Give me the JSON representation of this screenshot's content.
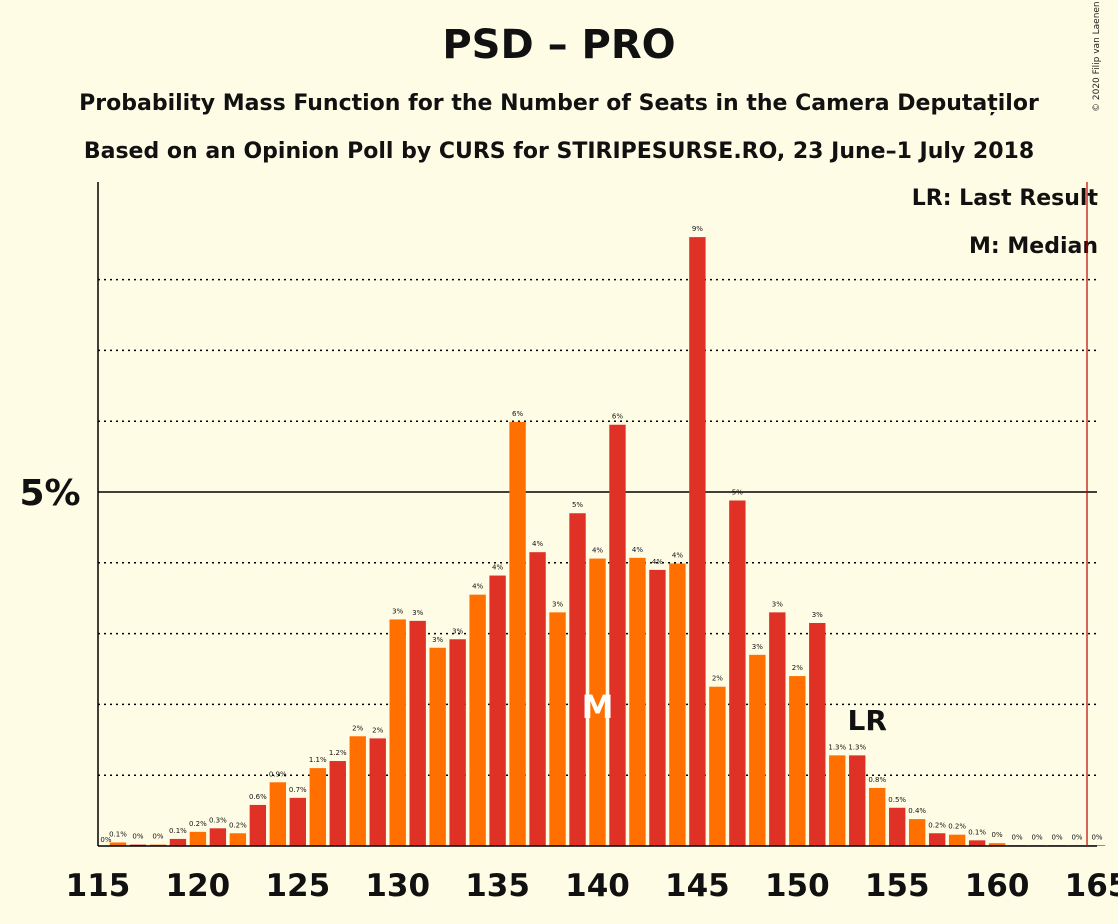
{
  "header": {
    "title": "PSD – PRO",
    "subtitle1": "Probability Mass Function for the Number of Seats in the Camera Deputaților",
    "subtitle2": "Based on an Opinion Poll by CURS for STIRIPESURSE.RO, 23 June–1 July 2018",
    "credit": "© 2020 Filip van Laenen"
  },
  "legend": {
    "lr": "LR: Last Result",
    "m": "M: Median"
  },
  "chart_data": {
    "type": "bar",
    "x": [
      116,
      117,
      118,
      119,
      120,
      121,
      122,
      123,
      124,
      125,
      126,
      127,
      128,
      129,
      130,
      131,
      132,
      133,
      134,
      135,
      136,
      137,
      138,
      139,
      140,
      141,
      142,
      143,
      144,
      145,
      146,
      147,
      148,
      149,
      150,
      151,
      152,
      153,
      154,
      155,
      156,
      157,
      158,
      159,
      160,
      161,
      162,
      163,
      164,
      165
    ],
    "values": [
      0.05,
      0.02,
      0.02,
      0.1,
      0.2,
      0.25,
      0.18,
      0.58,
      0.9,
      0.68,
      1.1,
      1.2,
      1.55,
      1.52,
      3.2,
      3.18,
      2.8,
      2.92,
      3.55,
      3.82,
      5.99,
      4.15,
      3.3,
      4.7,
      4.06,
      5.95,
      4.07,
      3.9,
      3.99,
      8.6,
      2.25,
      4.88,
      2.7,
      3.3,
      2.4,
      3.15,
      1.28,
      1.28,
      0.82,
      0.54,
      0.38,
      0.18,
      0.16,
      0.08,
      0.04,
      0.01,
      0.01,
      0.01,
      0.01,
      0.01
    ],
    "labels": [
      "0.1%",
      "0%",
      "0%",
      "0.1%",
      "0.2%",
      "0.3%",
      "0.2%",
      "0.6%",
      "0.9%",
      "0.7%",
      "1.1%",
      "1.2%",
      "2%",
      "2%",
      "3%",
      "3%",
      "3%",
      "3%",
      "4%",
      "4%",
      "6%",
      "4%",
      "3%",
      "5%",
      "4%",
      "6%",
      "4%",
      "4%",
      "4%",
      "9%",
      "2%",
      "5%",
      "3%",
      "3%",
      "2%",
      "3%",
      "1.3%",
      "1.3%",
      "0.8%",
      "0.5%",
      "0.4%",
      "0.2%",
      "0.2%",
      "0.1%",
      "0%",
      "0%",
      "0%",
      "0%",
      "0%",
      "0%"
    ],
    "first_label": "0%",
    "xlim": [
      115,
      165
    ],
    "ylim": [
      0,
      9.4
    ],
    "x_ticks": [
      "115",
      "120",
      "125",
      "130",
      "135",
      "140",
      "145",
      "150",
      "155",
      "160",
      "165"
    ],
    "y_tick_label": "5%",
    "y_tick_value": 5,
    "dotted_gridlines": [
      1,
      2,
      3,
      4,
      6,
      7,
      8
    ],
    "median_seat": 140,
    "median_label": "M",
    "last_result_seat": 153,
    "last_result_label": "LR",
    "majority_seat": 165,
    "colors": {
      "odd_bar": "#E03127",
      "even_bar": "#FF7000",
      "majority_line": "#C00000",
      "axis": "#000000"
    }
  }
}
